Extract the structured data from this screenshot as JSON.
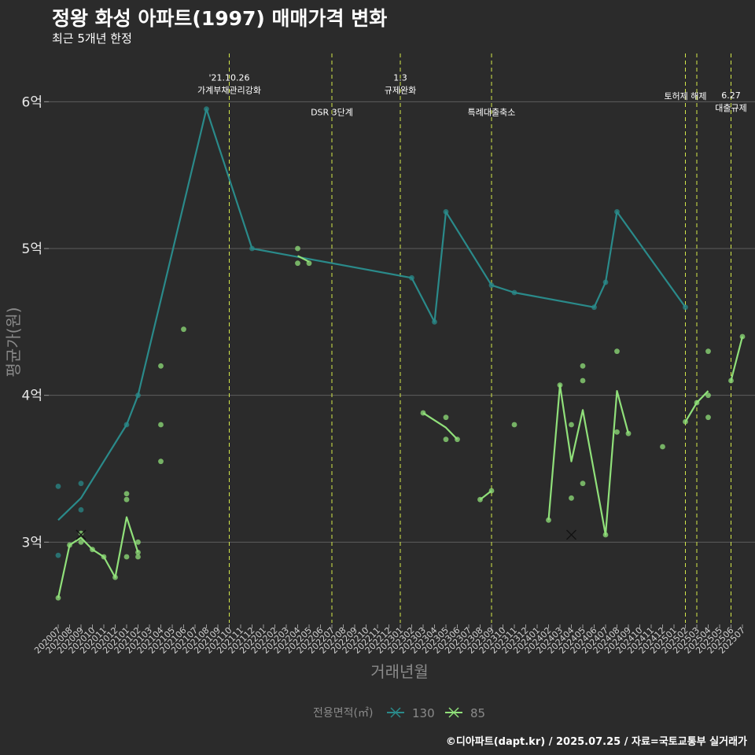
{
  "chart_data": {
    "type": "line",
    "title": "정왕 화성 아파트(1997) 매매가격 변화",
    "subtitle": "최근 5개년 한정",
    "xlabel": "거래년월",
    "ylabel": "평균가(원)",
    "caption": "©디아파트(dapt.kr) / 2025.07.25 / 자료=국토교통부 실거래가",
    "ylim": [
      2.45,
      6.35
    ],
    "yticks": [
      {
        "value": 3,
        "label": "3억"
      },
      {
        "value": 4,
        "label": "4억"
      },
      {
        "value": 5,
        "label": "5억"
      },
      {
        "value": 6,
        "label": "6억"
      }
    ],
    "months": [
      "202007",
      "202008",
      "202009",
      "202010",
      "202011",
      "202012",
      "202101",
      "202102",
      "202103",
      "202104",
      "202105",
      "202106",
      "202107",
      "202108",
      "202109",
      "202110",
      "202111",
      "202112",
      "202201",
      "202202",
      "202203",
      "202204",
      "202205",
      "202206",
      "202207",
      "202208",
      "202209",
      "202210",
      "202211",
      "202212",
      "202301",
      "202302",
      "202303",
      "202304",
      "202305",
      "202306",
      "202307",
      "202308",
      "202309",
      "202310",
      "202311",
      "202312",
      "202401",
      "202402",
      "202403",
      "202404",
      "202405",
      "202406",
      "202407",
      "202408",
      "202409",
      "202410",
      "202411",
      "202412",
      "202501",
      "202502",
      "202503",
      "202504",
      "202505",
      "202506",
      "202507"
    ],
    "legend": {
      "title": "전용면적(㎡)",
      "position": "bottom"
    },
    "series": [
      {
        "name": "130",
        "color": "#2a8a8a",
        "line": [
          [
            "202007",
            3.15
          ],
          [
            "202009",
            3.3
          ],
          [
            "202101",
            3.8
          ],
          [
            "202102",
            4.0
          ],
          [
            "202108",
            5.95
          ],
          [
            "202112",
            5.0
          ],
          [
            "202302",
            4.8
          ],
          [
            "202304",
            4.5
          ],
          [
            "202305",
            5.25
          ],
          [
            "202309",
            4.75
          ],
          [
            "202311",
            4.7
          ],
          [
            "202406",
            4.6
          ],
          [
            "202407",
            4.77
          ],
          [
            "202408",
            5.25
          ],
          [
            "202502",
            4.6
          ]
        ],
        "points": [
          [
            "202007",
            3.38
          ],
          [
            "202007",
            2.91
          ],
          [
            "202009",
            3.4
          ],
          [
            "202009",
            3.22
          ],
          [
            "202101",
            3.8
          ],
          [
            "202102",
            4.0
          ],
          [
            "202108",
            5.95
          ],
          [
            "202112",
            5.0
          ],
          [
            "202302",
            4.8
          ],
          [
            "202304",
            4.5
          ],
          [
            "202305",
            5.25
          ],
          [
            "202309",
            4.75
          ],
          [
            "202311",
            4.7
          ],
          [
            "202406",
            4.6
          ],
          [
            "202407",
            4.77
          ],
          [
            "202408",
            5.25
          ],
          [
            "202502",
            4.6
          ]
        ],
        "crosses": []
      },
      {
        "name": "85",
        "color": "#90e07a",
        "segments": [
          [
            [
              "202007",
              2.62
            ],
            [
              "202008",
              2.98
            ],
            [
              "202009",
              3.03
            ],
            [
              "202010",
              2.95
            ],
            [
              "202011",
              2.9
            ],
            [
              "202012",
              2.76
            ],
            [
              "202101",
              3.17
            ],
            [
              "202102",
              2.93
            ]
          ],
          [
            [
              "202204",
              4.95
            ],
            [
              "202205",
              4.91
            ]
          ],
          [
            [
              "202303",
              3.88
            ],
            [
              "202305",
              3.78
            ],
            [
              "202306",
              3.7
            ]
          ],
          [
            [
              "202308",
              3.29
            ],
            [
              "202309",
              3.35
            ]
          ],
          [
            [
              "202402",
              3.15
            ],
            [
              "202403",
              4.07
            ],
            [
              "202404",
              3.55
            ],
            [
              "202405",
              3.9
            ],
            [
              "202407",
              3.05
            ],
            [
              "202408",
              4.03
            ],
            [
              "202409",
              3.74
            ]
          ],
          [
            [
              "202502",
              3.82
            ],
            [
              "202503",
              3.95
            ],
            [
              "202504",
              4.03
            ]
          ],
          [
            [
              "202506",
              4.1
            ],
            [
              "202507",
              4.4
            ]
          ]
        ],
        "points": [
          [
            "202007",
            2.62
          ],
          [
            "202008",
            2.98
          ],
          [
            "202009",
            3.0
          ],
          [
            "202009",
            3.06
          ],
          [
            "202010",
            2.95
          ],
          [
            "202011",
            2.9
          ],
          [
            "202012",
            2.76
          ],
          [
            "202101",
            3.33
          ],
          [
            "202101",
            3.29
          ],
          [
            "202101",
            2.9
          ],
          [
            "202102",
            3.0
          ],
          [
            "202102",
            2.93
          ],
          [
            "202102",
            2.9
          ],
          [
            "202104",
            3.55
          ],
          [
            "202104",
            3.8
          ],
          [
            "202104",
            4.2
          ],
          [
            "202106",
            4.45
          ],
          [
            "202204",
            5.0
          ],
          [
            "202204",
            4.9
          ],
          [
            "202205",
            4.9
          ],
          [
            "202303",
            3.88
          ],
          [
            "202305",
            3.85
          ],
          [
            "202305",
            3.7
          ],
          [
            "202306",
            3.7
          ],
          [
            "202308",
            3.29
          ],
          [
            "202309",
            3.35
          ],
          [
            "202311",
            3.8
          ],
          [
            "202402",
            3.15
          ],
          [
            "202403",
            4.07
          ],
          [
            "202404",
            3.8
          ],
          [
            "202404",
            3.3
          ],
          [
            "202405",
            4.2
          ],
          [
            "202405",
            4.1
          ],
          [
            "202405",
            3.4
          ],
          [
            "202407",
            3.05
          ],
          [
            "202408",
            4.3
          ],
          [
            "202408",
            3.75
          ],
          [
            "202409",
            3.74
          ],
          [
            "202412",
            3.65
          ],
          [
            "202502",
            3.82
          ],
          [
            "202503",
            3.95
          ],
          [
            "202504",
            4.3
          ],
          [
            "202504",
            4.0
          ],
          [
            "202504",
            3.85
          ],
          [
            "202506",
            4.1
          ],
          [
            "202507",
            4.4
          ]
        ],
        "crosses": [
          [
            "202009",
            3.05
          ],
          [
            "202404",
            3.05
          ]
        ]
      }
    ],
    "events": [
      {
        "month": "202110",
        "lines": [
          "'21.10.26",
          "가계부채관리강화"
        ],
        "label_y": 6.08
      },
      {
        "month": "202207",
        "lines": [
          "DSR 3단계"
        ],
        "label_y": 5.93
      },
      {
        "month": "202301",
        "lines": [
          "1.3",
          "규제완화"
        ],
        "label_y": 6.08
      },
      {
        "month": "202309",
        "lines": [
          "특례대출축소"
        ],
        "label_y": 5.93
      },
      {
        "month": "202502",
        "lines": [
          "토허제 해제"
        ],
        "label_y": 6.04
      },
      {
        "month": "202503",
        "lines": [],
        "label_y": 6.0
      },
      {
        "month": "202506",
        "lines": [
          "6.27",
          "대출규제"
        ],
        "label_y": 5.96
      }
    ]
  }
}
